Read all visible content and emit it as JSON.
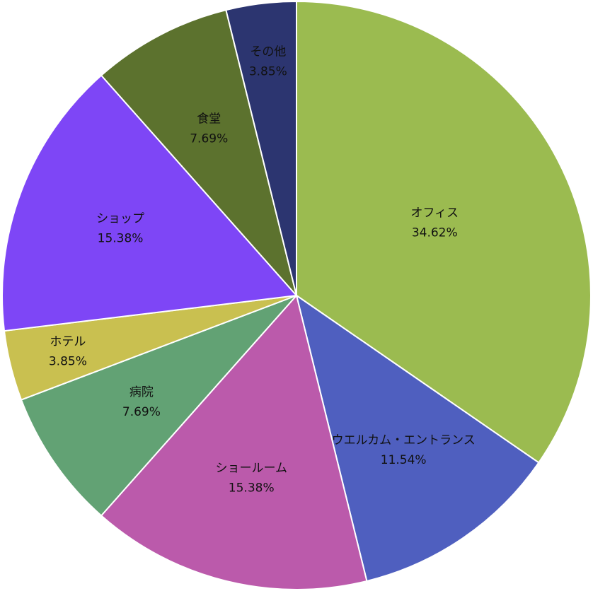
{
  "chart_data": {
    "type": "pie",
    "categories": [
      "オフィス",
      "ウエルカム・エントランス",
      "ショールーム",
      "病院",
      "ホテル",
      "ショップ",
      "食堂",
      "その他"
    ],
    "values": [
      34.62,
      11.54,
      15.38,
      7.69,
      3.85,
      15.38,
      7.69,
      3.85
    ],
    "value_labels": [
      "34.62%",
      "11.54%",
      "15.38%",
      "7.69%",
      "3.85%",
      "15.38%",
      "7.69%",
      "3.85%"
    ],
    "colors": [
      "#9bbb50",
      "#4f5fbf",
      "#bb5aab",
      "#62a274",
      "#c9c050",
      "#7e46f6",
      "#5c722e",
      "#2c3570"
    ]
  }
}
